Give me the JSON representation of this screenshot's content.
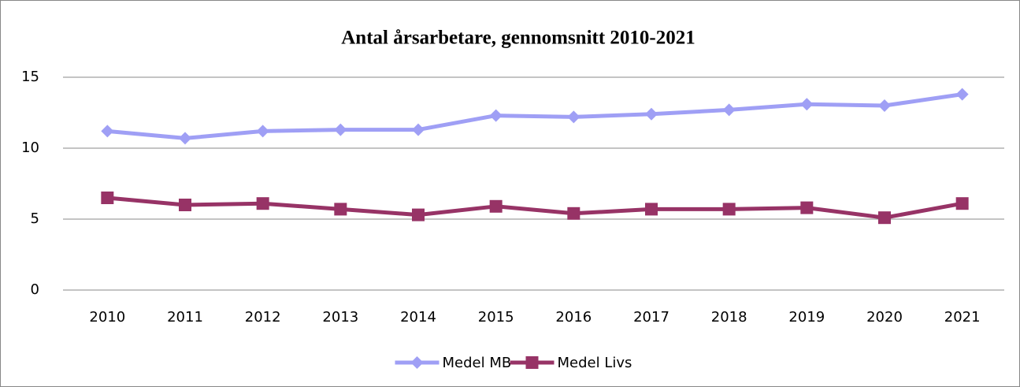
{
  "chart_data": {
    "type": "line",
    "title": "Antal årsarbetare, gennomsnitt 2010-2021",
    "categories": [
      "2010",
      "2011",
      "2012",
      "2013",
      "2014",
      "2015",
      "2016",
      "2017",
      "2018",
      "2019",
      "2020",
      "2021"
    ],
    "series": [
      {
        "name": "Medel MB",
        "color": "#9f9ff5",
        "marker": "diamond",
        "values": [
          11.2,
          10.7,
          11.2,
          11.3,
          11.3,
          12.3,
          12.2,
          12.4,
          12.7,
          13.1,
          13.0,
          13.8
        ]
      },
      {
        "name": "Medel Livs",
        "color": "#973366",
        "marker": "square",
        "values": [
          6.5,
          6.0,
          6.1,
          5.7,
          5.3,
          5.9,
          5.4,
          5.7,
          5.7,
          5.8,
          5.1,
          6.1
        ]
      }
    ],
    "ylim": [
      0,
      15
    ],
    "yticks": [
      0,
      5,
      10,
      15
    ],
    "grid": true,
    "legend": "bottom"
  }
}
